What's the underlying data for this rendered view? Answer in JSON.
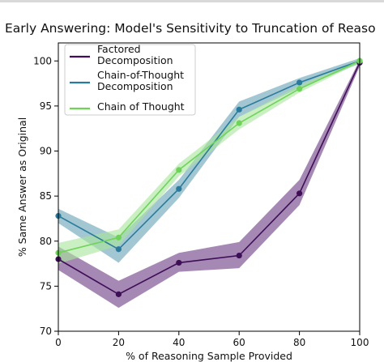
{
  "chart_data": {
    "type": "line",
    "title": "Early Answering: Model's Sensitivity to Truncation of Reaso",
    "xlabel": "% of Reasoning Sample Provided",
    "ylabel": "% Same Answer as Original",
    "x": [
      0,
      20,
      40,
      60,
      80,
      100
    ],
    "xlim": [
      0,
      100
    ],
    "ylim": [
      70,
      102
    ],
    "x_ticks": [
      0,
      20,
      40,
      60,
      80,
      100
    ],
    "y_ticks": [
      70,
      75,
      80,
      85,
      90,
      95,
      100
    ],
    "grid": false,
    "legend_position": "upper-left",
    "series": [
      {
        "name": "Factored\nDecomposition",
        "color": "#3e0e57",
        "band_color": "#6f3f86",
        "values": [
          78.0,
          74.1,
          77.6,
          78.4,
          85.3,
          99.8
        ],
        "lower": [
          76.8,
          72.6,
          76.6,
          77.0,
          84.0,
          99.4
        ],
        "upper": [
          79.4,
          75.6,
          78.7,
          79.9,
          86.8,
          100.1
        ]
      },
      {
        "name": "Chain-of-Thought\nDecomposition",
        "color": "#2a7b9b",
        "band_color": "#6aa3b8",
        "values": [
          82.8,
          79.1,
          85.8,
          94.6,
          97.6,
          100.0
        ],
        "lower": [
          82.0,
          77.6,
          84.8,
          93.8,
          97.0,
          99.7
        ],
        "upper": [
          83.6,
          80.4,
          86.8,
          95.5,
          98.1,
          100.3
        ]
      },
      {
        "name": "Chain of Thought",
        "color": "#6fd35a",
        "band_color": "#a9e59c",
        "values": [
          78.7,
          80.4,
          87.9,
          93.1,
          96.9,
          100.0
        ],
        "lower": [
          77.5,
          79.5,
          87.2,
          92.4,
          96.5,
          99.8
        ],
        "upper": [
          79.8,
          81.3,
          88.6,
          93.8,
          97.3,
          100.2
        ]
      }
    ]
  }
}
